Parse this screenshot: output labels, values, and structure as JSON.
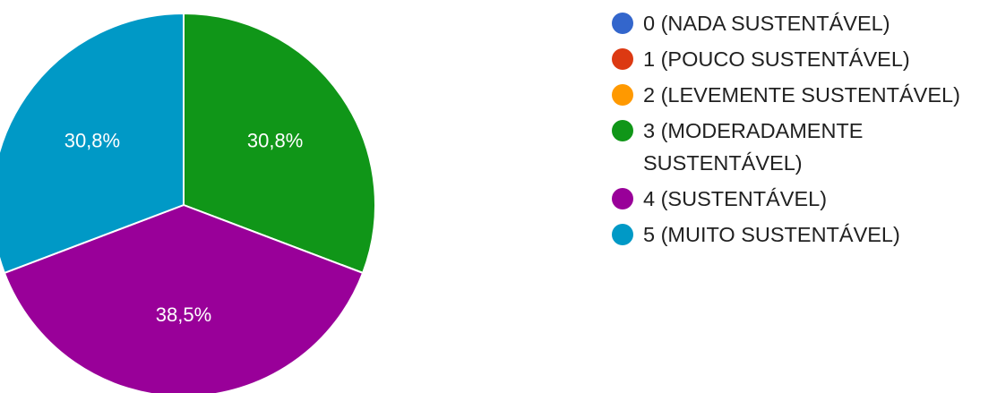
{
  "chart_data": {
    "type": "pie",
    "categories": [
      "0 (NADA SUSTENTÁVEL)",
      "1 (POUCO SUSTENTÁVEL)",
      "2 (LEVEMENTE SUSTENTÁVEL)",
      "3 (MODERADAMENTE SUSTENTÁVEL)",
      "4 (SUSTENTÁVEL)",
      "5 (MUITO SUSTENTÁVEL)"
    ],
    "values": [
      0,
      0,
      0,
      30.8,
      38.5,
      30.8
    ],
    "value_labels": [
      "",
      "",
      "",
      "30,8%",
      "38,5%",
      "30,8%"
    ],
    "colors": [
      "#3366cc",
      "#dc3912",
      "#ff9900",
      "#109618",
      "#990099",
      "#0099c6"
    ],
    "legend_position": "right"
  }
}
